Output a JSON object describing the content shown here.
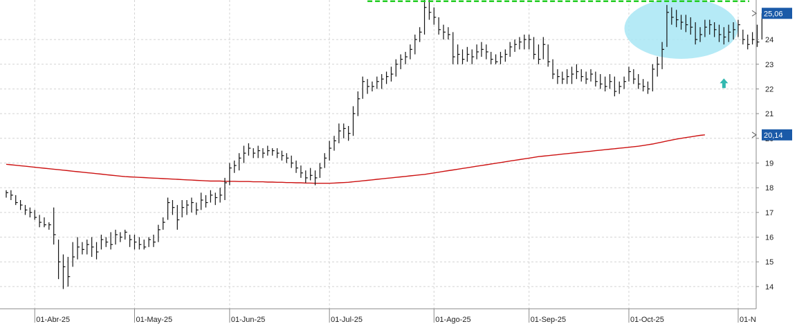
{
  "chart_data": {
    "type": "bar",
    "subtype": "ohlc",
    "title": "",
    "xlabel": "",
    "ylabel": "",
    "ylim": [
      13.1,
      25.6
    ],
    "grid": true,
    "y_ticks": [
      14,
      15,
      16,
      17,
      18,
      19,
      20,
      21,
      22,
      23,
      24
    ],
    "x_ticks": [
      {
        "label": "01-Abr-25",
        "index": 6
      },
      {
        "label": "01-May-25",
        "index": 27
      },
      {
        "label": "01-Jun-25",
        "index": 47
      },
      {
        "label": "01-Jul-25",
        "index": 68
      },
      {
        "label": "01-Ago-25",
        "index": 90
      },
      {
        "label": "01-Sep-25",
        "index": 110
      },
      {
        "label": "01-Oct-25",
        "index": 131
      },
      {
        "label": "01-N",
        "index": 154
      }
    ],
    "price_tags": [
      {
        "text": "25,06",
        "value": 25.06,
        "bg": "#1a5aa8"
      },
      {
        "text": "20,14",
        "value": 20.14,
        "bg": "#1a5aa8"
      }
    ],
    "ohlc": [
      [
        17.9,
        17.6,
        17.8
      ],
      [
        17.9,
        17.5,
        17.7
      ],
      [
        17.7,
        17.3,
        17.4
      ],
      [
        17.5,
        17.1,
        17.3
      ],
      [
        17.3,
        16.9,
        17.1
      ],
      [
        17.2,
        16.8,
        17.0
      ],
      [
        17.1,
        16.7,
        16.8
      ],
      [
        16.9,
        16.4,
        16.6
      ],
      [
        16.8,
        16.4,
        16.5
      ],
      [
        16.6,
        16.3,
        16.5
      ],
      [
        17.2,
        15.7,
        16.1
      ],
      [
        15.9,
        14.3,
        15.0
      ],
      [
        15.3,
        13.9,
        14.8
      ],
      [
        15.2,
        14.0,
        14.4
      ],
      [
        15.8,
        14.8,
        15.2
      ],
      [
        16.0,
        15.1,
        15.6
      ],
      [
        15.8,
        15.3,
        15.5
      ],
      [
        15.9,
        15.3,
        15.7
      ],
      [
        16.0,
        15.2,
        15.6
      ],
      [
        15.8,
        15.1,
        15.4
      ],
      [
        16.1,
        15.5,
        15.9
      ],
      [
        16.0,
        15.6,
        15.8
      ],
      [
        16.2,
        15.5,
        15.7
      ],
      [
        16.3,
        15.7,
        16.1
      ],
      [
        16.2,
        15.8,
        16.0
      ],
      [
        16.3,
        15.9,
        16.2
      ],
      [
        16.1,
        15.6,
        15.9
      ],
      [
        16.1,
        15.5,
        15.8
      ],
      [
        16.0,
        15.5,
        15.7
      ],
      [
        15.9,
        15.5,
        15.6
      ],
      [
        16.0,
        15.6,
        15.9
      ],
      [
        16.1,
        15.6,
        15.8
      ],
      [
        16.5,
        15.8,
        16.3
      ],
      [
        16.8,
        16.3,
        16.6
      ],
      [
        17.6,
        16.7,
        17.4
      ],
      [
        17.5,
        16.9,
        17.2
      ],
      [
        17.3,
        16.3,
        16.7
      ],
      [
        17.5,
        16.8,
        17.2
      ],
      [
        17.5,
        16.9,
        17.3
      ],
      [
        17.6,
        17.0,
        17.4
      ],
      [
        17.4,
        16.9,
        17.1
      ],
      [
        17.8,
        17.1,
        17.5
      ],
      [
        17.7,
        17.2,
        17.4
      ],
      [
        17.9,
        17.4,
        17.7
      ],
      [
        17.8,
        17.3,
        17.6
      ],
      [
        18.0,
        17.4,
        17.7
      ],
      [
        18.4,
        17.5,
        18.2
      ],
      [
        19.0,
        18.1,
        18.8
      ],
      [
        19.1,
        18.6,
        18.9
      ],
      [
        19.4,
        18.7,
        19.2
      ],
      [
        19.7,
        19.0,
        19.4
      ],
      [
        19.8,
        19.3,
        19.6
      ],
      [
        19.6,
        19.2,
        19.4
      ],
      [
        19.7,
        19.2,
        19.5
      ],
      [
        19.6,
        19.2,
        19.4
      ],
      [
        19.7,
        19.3,
        19.5
      ],
      [
        19.6,
        19.3,
        19.5
      ],
      [
        19.6,
        19.2,
        19.4
      ],
      [
        19.5,
        19.1,
        19.3
      ],
      [
        19.4,
        19.0,
        19.2
      ],
      [
        19.3,
        18.8,
        19.0
      ],
      [
        19.1,
        18.6,
        18.8
      ],
      [
        18.9,
        18.4,
        18.6
      ],
      [
        18.7,
        18.2,
        18.4
      ],
      [
        18.8,
        18.3,
        18.5
      ],
      [
        18.7,
        18.1,
        18.4
      ],
      [
        19.0,
        18.4,
        18.8
      ],
      [
        19.4,
        18.8,
        19.2
      ],
      [
        19.9,
        19.1,
        19.6
      ],
      [
        20.1,
        19.5,
        19.9
      ],
      [
        20.6,
        19.8,
        20.3
      ],
      [
        20.6,
        20.0,
        20.4
      ],
      [
        20.5,
        19.9,
        20.2
      ],
      [
        21.3,
        20.1,
        21.0
      ],
      [
        21.9,
        20.9,
        21.6
      ],
      [
        22.5,
        21.6,
        22.3
      ],
      [
        22.4,
        21.8,
        22.1
      ],
      [
        22.3,
        21.9,
        22.1
      ],
      [
        22.5,
        22.0,
        22.3
      ],
      [
        22.6,
        22.0,
        22.4
      ],
      [
        22.7,
        22.2,
        22.5
      ],
      [
        22.9,
        22.3,
        22.6
      ],
      [
        23.2,
        22.5,
        23.0
      ],
      [
        23.4,
        22.8,
        23.2
      ],
      [
        23.5,
        23.0,
        23.3
      ],
      [
        23.8,
        23.2,
        23.6
      ],
      [
        24.2,
        23.4,
        24.0
      ],
      [
        24.5,
        23.9,
        24.3
      ],
      [
        25.6,
        24.2,
        25.3
      ],
      [
        25.6,
        24.8,
        25.1
      ],
      [
        25.3,
        24.6,
        24.9
      ],
      [
        24.9,
        24.2,
        24.4
      ],
      [
        24.6,
        24.0,
        24.3
      ],
      [
        24.5,
        24.0,
        24.2
      ],
      [
        24.3,
        23.0,
        23.3
      ],
      [
        23.8,
        23.0,
        23.4
      ],
      [
        23.6,
        23.0,
        23.2
      ],
      [
        23.7,
        23.1,
        23.4
      ],
      [
        23.6,
        23.0,
        23.3
      ],
      [
        23.8,
        23.2,
        23.5
      ],
      [
        23.9,
        23.3,
        23.6
      ],
      [
        23.8,
        23.2,
        23.5
      ],
      [
        23.5,
        23.0,
        23.2
      ],
      [
        23.4,
        23.0,
        23.1
      ],
      [
        23.5,
        23.0,
        23.3
      ],
      [
        23.6,
        23.1,
        23.4
      ],
      [
        23.9,
        23.3,
        23.7
      ],
      [
        24.0,
        23.5,
        23.8
      ],
      [
        24.1,
        23.6,
        23.9
      ],
      [
        24.2,
        23.6,
        24.0
      ],
      [
        24.2,
        23.6,
        24.0
      ],
      [
        24.1,
        23.2,
        23.4
      ],
      [
        23.8,
        23.0,
        23.2
      ],
      [
        24.1,
        23.2,
        23.8
      ],
      [
        23.8,
        22.9,
        23.1
      ],
      [
        23.2,
        22.4,
        22.6
      ],
      [
        22.8,
        22.2,
        22.5
      ],
      [
        22.7,
        22.2,
        22.4
      ],
      [
        22.8,
        22.2,
        22.5
      ],
      [
        22.9,
        22.2,
        22.6
      ],
      [
        23.0,
        22.4,
        22.7
      ],
      [
        22.8,
        22.3,
        22.5
      ],
      [
        22.7,
        22.2,
        22.4
      ],
      [
        22.8,
        22.3,
        22.6
      ],
      [
        22.7,
        22.1,
        22.3
      ],
      [
        22.6,
        22.0,
        22.2
      ],
      [
        22.5,
        21.9,
        22.1
      ],
      [
        22.6,
        22.0,
        22.3
      ],
      [
        22.5,
        21.7,
        21.9
      ],
      [
        22.3,
        21.8,
        22.1
      ],
      [
        22.5,
        22.0,
        22.3
      ],
      [
        22.9,
        22.3,
        22.7
      ],
      [
        22.8,
        22.2,
        22.4
      ],
      [
        22.6,
        22.0,
        22.2
      ],
      [
        22.4,
        21.9,
        22.1
      ],
      [
        22.3,
        21.8,
        22.0
      ],
      [
        23.0,
        21.9,
        22.8
      ],
      [
        23.3,
        22.5,
        23.0
      ],
      [
        23.9,
        22.8,
        23.6
      ],
      [
        25.4,
        23.7,
        25.1
      ],
      [
        25.3,
        24.6,
        24.9
      ],
      [
        25.2,
        24.5,
        24.8
      ],
      [
        25.0,
        24.4,
        24.7
      ],
      [
        25.0,
        24.3,
        24.6
      ],
      [
        24.9,
        24.2,
        24.5
      ],
      [
        24.7,
        23.8,
        24.0
      ],
      [
        24.5,
        23.9,
        24.2
      ],
      [
        24.8,
        24.1,
        24.5
      ],
      [
        24.8,
        24.2,
        24.6
      ],
      [
        24.7,
        24.1,
        24.4
      ],
      [
        24.6,
        23.9,
        24.2
      ],
      [
        24.5,
        23.8,
        24.1
      ],
      [
        24.6,
        23.9,
        24.3
      ],
      [
        24.7,
        24.0,
        24.4
      ],
      [
        24.8,
        24.1,
        24.6
      ],
      [
        24.4,
        23.8,
        24.0
      ],
      [
        24.2,
        23.6,
        23.8
      ],
      [
        24.3,
        23.8,
        24.0
      ],
      [
        24.6,
        23.7,
        23.9
      ],
      [
        25.06,
        24.0,
        24.9
      ]
    ],
    "moving_average": {
      "color": "#cc1111",
      "values": [
        18.95,
        18.93,
        18.91,
        18.89,
        18.87,
        18.85,
        18.83,
        18.81,
        18.79,
        18.77,
        18.75,
        18.73,
        18.71,
        18.69,
        18.67,
        18.65,
        18.63,
        18.61,
        18.59,
        18.57,
        18.55,
        18.53,
        18.51,
        18.49,
        18.47,
        18.45,
        18.44,
        18.43,
        18.42,
        18.41,
        18.4,
        18.39,
        18.38,
        18.37,
        18.36,
        18.35,
        18.34,
        18.33,
        18.32,
        18.31,
        18.3,
        18.29,
        18.28,
        18.27,
        18.27,
        18.27,
        18.26,
        18.26,
        18.26,
        18.25,
        18.25,
        18.25,
        18.24,
        18.24,
        18.24,
        18.23,
        18.23,
        18.22,
        18.22,
        18.21,
        18.21,
        18.2,
        18.2,
        18.19,
        18.19,
        18.18,
        18.18,
        18.18,
        18.18,
        18.19,
        18.2,
        18.21,
        18.22,
        18.24,
        18.26,
        18.28,
        18.3,
        18.32,
        18.34,
        18.36,
        18.38,
        18.4,
        18.42,
        18.44,
        18.46,
        18.48,
        18.5,
        18.52,
        18.54,
        18.57,
        18.6,
        18.63,
        18.66,
        18.69,
        18.72,
        18.75,
        18.78,
        18.81,
        18.84,
        18.87,
        18.9,
        18.93,
        18.96,
        18.99,
        19.02,
        19.05,
        19.08,
        19.11,
        19.14,
        19.17,
        19.2,
        19.23,
        19.26,
        19.28,
        19.3,
        19.32,
        19.34,
        19.36,
        19.38,
        19.4,
        19.42,
        19.44,
        19.46,
        19.48,
        19.5,
        19.52,
        19.54,
        19.56,
        19.58,
        19.6,
        19.62,
        19.64,
        19.66,
        19.68,
        19.71,
        19.74,
        19.77,
        19.81,
        19.85,
        19.89,
        19.93,
        19.97,
        20.0,
        20.03,
        20.06,
        20.09,
        20.12,
        20.14
      ]
    },
    "resistance_line": {
      "value": 25.55,
      "from_index": 76,
      "to_index": 154,
      "color": "#22cc22",
      "style": "dashed"
    },
    "highlight_ellipse": {
      "center_index": 142,
      "center_value": 24.45,
      "color": "#a8e6f4"
    },
    "up_arrow": {
      "index": 151,
      "value": 22.2,
      "color": "#33b8b0"
    }
  }
}
